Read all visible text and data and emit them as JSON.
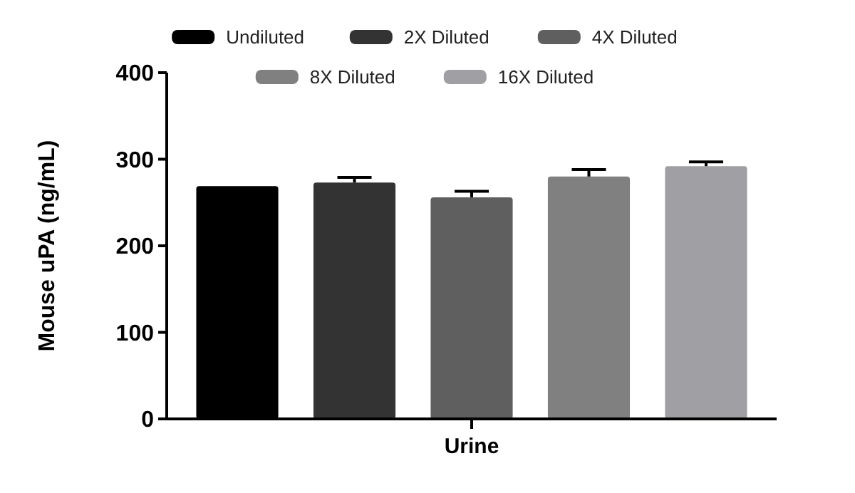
{
  "chart_data": {
    "type": "bar",
    "ylabel": "Mouse uPA (ng/mL)",
    "categories": [
      "Urine"
    ],
    "ylim": [
      0,
      400
    ],
    "yticks": [
      0,
      100,
      200,
      300,
      400
    ],
    "legend": "top",
    "series": [
      {
        "name": "Undiluted",
        "color": "#000000",
        "values": [
          269
        ],
        "errors": [
          null
        ]
      },
      {
        "name": "2X Diluted",
        "color": "#333333",
        "values": [
          273
        ],
        "errors": [
          6
        ]
      },
      {
        "name": "4X Diluted",
        "color": "#5f5f5f",
        "values": [
          256
        ],
        "errors": [
          7
        ]
      },
      {
        "name": "8X Diluted",
        "color": "#808080",
        "values": [
          280
        ],
        "errors": [
          8
        ]
      },
      {
        "name": "16X Diluted",
        "color": "#a0a0a4",
        "values": [
          292
        ],
        "errors": [
          5
        ]
      }
    ]
  }
}
